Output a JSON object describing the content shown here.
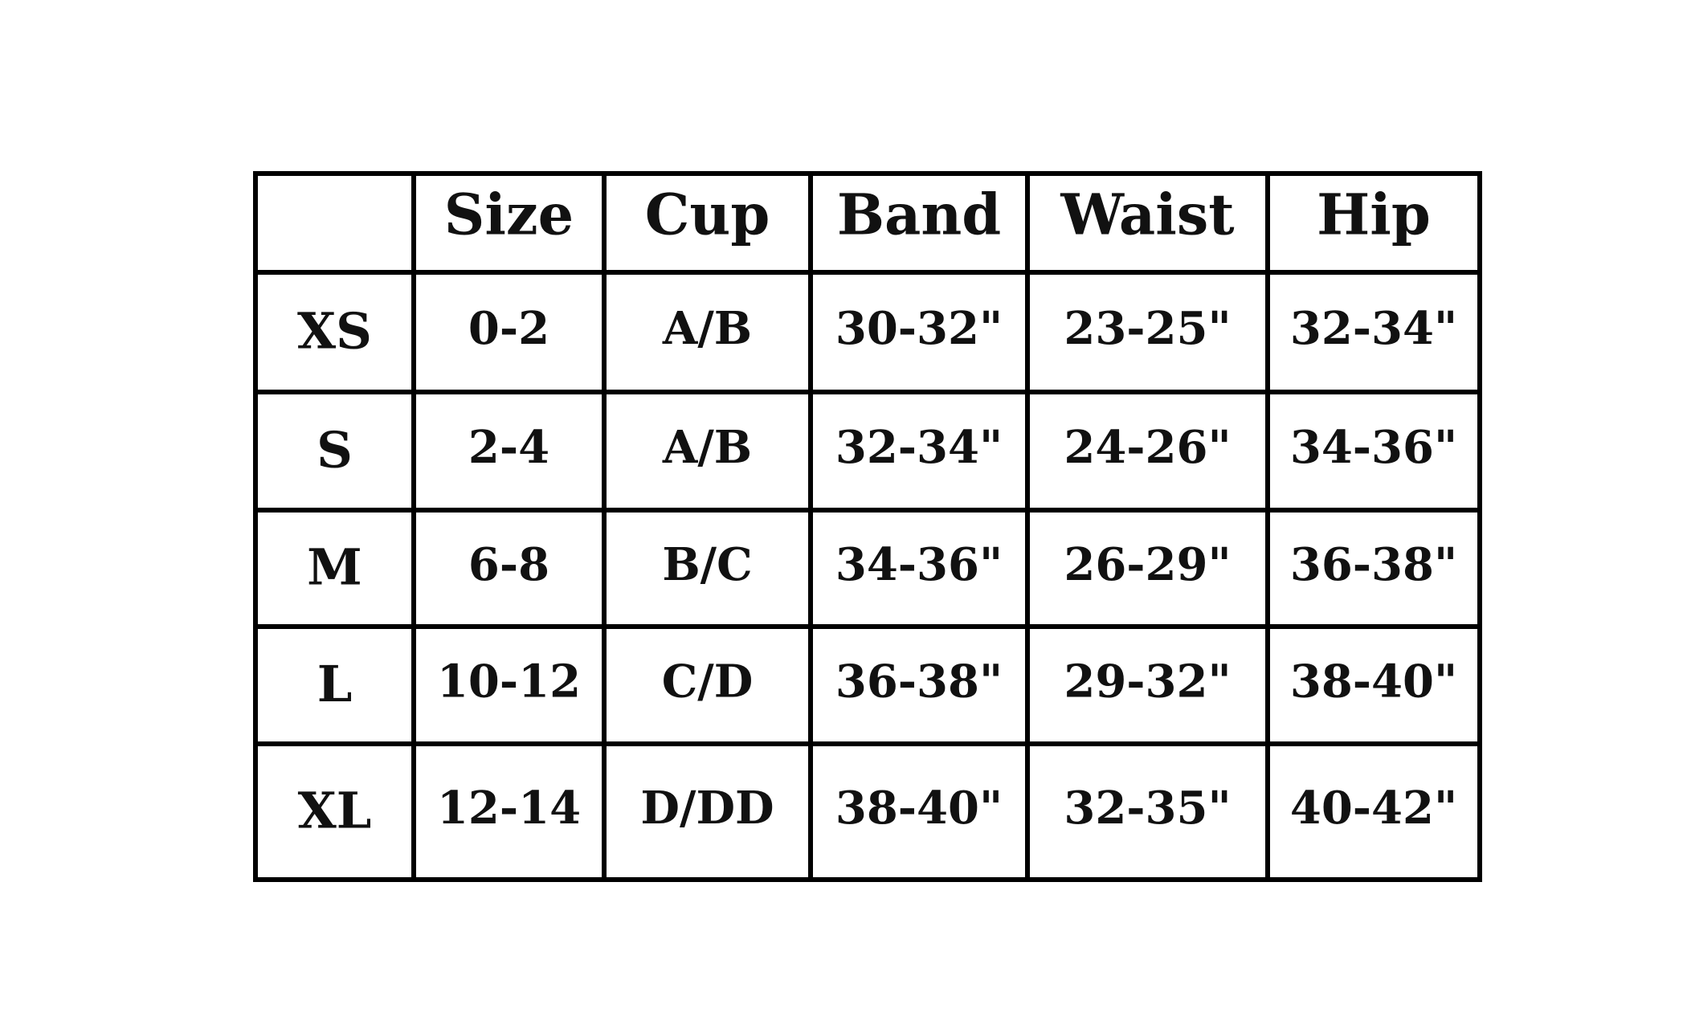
{
  "table": {
    "columns": [
      "Size",
      "Cup",
      "Band",
      "Waist",
      "Hip"
    ],
    "rows": [
      {
        "label": "XS",
        "cells": [
          "0-2",
          "A/B",
          "30-32\"",
          "23-25\"",
          "32-34\""
        ]
      },
      {
        "label": "S",
        "cells": [
          "2-4",
          "A/B",
          "32-34\"",
          "24-26\"",
          "34-36\""
        ]
      },
      {
        "label": "M",
        "cells": [
          "6-8",
          "B/C",
          "34-36\"",
          "26-29\"",
          "36-38\""
        ]
      },
      {
        "label": "L",
        "cells": [
          "10-12",
          "C/D",
          "36-38\"",
          "29-32\"",
          "38-40\""
        ]
      },
      {
        "label": "XL",
        "cells": [
          "12-14",
          "D/DD",
          "38-40\"",
          "32-35\"",
          "40-42\""
        ]
      }
    ]
  }
}
